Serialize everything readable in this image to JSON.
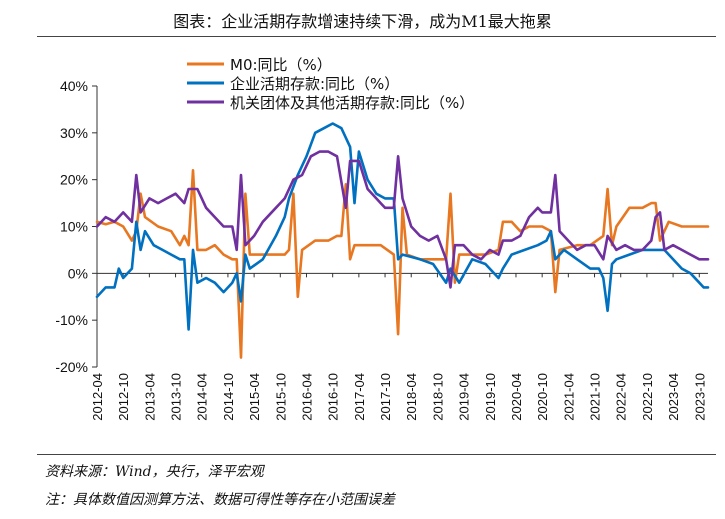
{
  "title": "图表：企业活期存款增速持续下滑，成为M1最大拖累",
  "source_note": "资料来源：Wind，央行，泽平宏观",
  "footnote": "注：具体数值因测算方法、数据可得性等存在小范围误差",
  "colors": {
    "m0": "#E87722",
    "corp": "#0070C0",
    "other": "#7030A0",
    "axis": "#333333"
  },
  "chart_data": {
    "type": "line",
    "ylim": [
      -20,
      40
    ],
    "yticks": [
      -20,
      -10,
      0,
      10,
      20,
      30,
      40
    ],
    "ytick_labels": [
      "-20%",
      "-10%",
      "0%",
      "10%",
      "20%",
      "30%",
      "40%"
    ],
    "grid": false,
    "legend_position": "top-left",
    "xtick_labels": [
      "2012-04",
      "2012-10",
      "2013-04",
      "2013-10",
      "2014-04",
      "2014-10",
      "2015-04",
      "2015-10",
      "2016-04",
      "2016-10",
      "2017-04",
      "2017-10",
      "2018-04",
      "2018-10",
      "2019-04",
      "2019-10",
      "2020-04",
      "2020-10",
      "2021-04",
      "2021-10",
      "2022-04",
      "2022-10",
      "2023-04",
      "2023-10"
    ],
    "series": [
      {
        "name": "M0:同比（%）",
        "color_key": "m0",
        "points": [
          [
            "2012-04",
            11
          ],
          [
            "2012-06",
            10.5
          ],
          [
            "2012-08",
            11
          ],
          [
            "2012-10",
            10
          ],
          [
            "2012-12",
            7
          ],
          [
            "2013-01",
            9
          ],
          [
            "2013-02",
            17
          ],
          [
            "2013-03",
            12
          ],
          [
            "2013-06",
            10
          ],
          [
            "2013-09",
            9
          ],
          [
            "2013-11",
            6
          ],
          [
            "2013-12",
            8
          ],
          [
            "2014-01",
            6
          ],
          [
            "2014-02",
            22
          ],
          [
            "2014-03",
            5
          ],
          [
            "2014-05",
            5
          ],
          [
            "2014-07",
            6
          ],
          [
            "2014-09",
            4
          ],
          [
            "2014-11",
            3
          ],
          [
            "2014-12",
            3
          ],
          [
            "2015-01",
            -18
          ],
          [
            "2015-02",
            17
          ],
          [
            "2015-03",
            4
          ],
          [
            "2015-06",
            4
          ],
          [
            "2015-09",
            4
          ],
          [
            "2015-11",
            4
          ],
          [
            "2015-12",
            5
          ],
          [
            "2016-01",
            17
          ],
          [
            "2016-02",
            -5
          ],
          [
            "2016-03",
            5
          ],
          [
            "2016-06",
            7
          ],
          [
            "2016-09",
            7
          ],
          [
            "2016-11",
            8
          ],
          [
            "2016-12",
            8
          ],
          [
            "2017-01",
            19
          ],
          [
            "2017-02",
            3
          ],
          [
            "2017-03",
            6
          ],
          [
            "2017-06",
            6
          ],
          [
            "2017-09",
            6
          ],
          [
            "2017-12",
            4
          ],
          [
            "2018-01",
            -13
          ],
          [
            "2018-02",
            14
          ],
          [
            "2018-03",
            4
          ],
          [
            "2018-06",
            3
          ],
          [
            "2018-09",
            3
          ],
          [
            "2018-12",
            3
          ],
          [
            "2019-01",
            17
          ],
          [
            "2019-02",
            -2
          ],
          [
            "2019-03",
            4
          ],
          [
            "2019-06",
            4
          ],
          [
            "2019-09",
            4
          ],
          [
            "2019-12",
            5
          ],
          [
            "2020-01",
            11
          ],
          [
            "2020-03",
            11
          ],
          [
            "2020-05",
            9
          ],
          [
            "2020-07",
            10
          ],
          [
            "2020-09",
            10
          ],
          [
            "2020-10",
            10
          ],
          [
            "2020-12",
            9
          ],
          [
            "2021-01",
            -4
          ],
          [
            "2021-02",
            5
          ],
          [
            "2021-06",
            6
          ],
          [
            "2021-09",
            6
          ],
          [
            "2021-12",
            8
          ],
          [
            "2022-01",
            18
          ],
          [
            "2022-02",
            6
          ],
          [
            "2022-03",
            10
          ],
          [
            "2022-06",
            14
          ],
          [
            "2022-09",
            14
          ],
          [
            "2022-11",
            15
          ],
          [
            "2022-12",
            15
          ],
          [
            "2023-01",
            7
          ],
          [
            "2023-03",
            11
          ],
          [
            "2023-06",
            10
          ],
          [
            "2023-09",
            10
          ],
          [
            "2023-11",
            10
          ],
          [
            "2023-12",
            10
          ]
        ]
      },
      {
        "name": "企业活期存款:同比（%）",
        "color_key": "corp",
        "points": [
          [
            "2012-04",
            -5
          ],
          [
            "2012-06",
            -3
          ],
          [
            "2012-08",
            -3
          ],
          [
            "2012-09",
            1
          ],
          [
            "2012-10",
            -1
          ],
          [
            "2012-12",
            1
          ],
          [
            "2013-01",
            11
          ],
          [
            "2013-02",
            5
          ],
          [
            "2013-03",
            9
          ],
          [
            "2013-05",
            6
          ],
          [
            "2013-07",
            5
          ],
          [
            "2013-09",
            4
          ],
          [
            "2013-11",
            3
          ],
          [
            "2013-12",
            3
          ],
          [
            "2014-01",
            -12
          ],
          [
            "2014-02",
            5
          ],
          [
            "2014-03",
            -2
          ],
          [
            "2014-05",
            -1
          ],
          [
            "2014-07",
            -2
          ],
          [
            "2014-09",
            -4
          ],
          [
            "2014-11",
            -2
          ],
          [
            "2014-12",
            0
          ],
          [
            "2015-01",
            -6
          ],
          [
            "2015-02",
            4
          ],
          [
            "2015-03",
            1
          ],
          [
            "2015-06",
            3
          ],
          [
            "2015-09",
            8
          ],
          [
            "2015-11",
            12
          ],
          [
            "2015-12",
            16
          ],
          [
            "2016-02",
            21
          ],
          [
            "2016-04",
            25
          ],
          [
            "2016-06",
            30
          ],
          [
            "2016-08",
            31
          ],
          [
            "2016-10",
            32
          ],
          [
            "2016-12",
            31
          ],
          [
            "2017-02",
            27
          ],
          [
            "2017-03",
            15
          ],
          [
            "2017-04",
            26
          ],
          [
            "2017-06",
            20
          ],
          [
            "2017-08",
            17
          ],
          [
            "2017-10",
            16
          ],
          [
            "2017-12",
            16
          ],
          [
            "2018-01",
            3
          ],
          [
            "2018-02",
            4
          ],
          [
            "2018-06",
            3
          ],
          [
            "2018-09",
            2
          ],
          [
            "2018-12",
            -2
          ],
          [
            "2019-01",
            1
          ],
          [
            "2019-03",
            -2
          ],
          [
            "2019-06",
            3
          ],
          [
            "2019-09",
            2
          ],
          [
            "2019-12",
            -1
          ],
          [
            "2020-01",
            1
          ],
          [
            "2020-03",
            4
          ],
          [
            "2020-06",
            5
          ],
          [
            "2020-09",
            6
          ],
          [
            "2020-11",
            7
          ],
          [
            "2020-12",
            9
          ],
          [
            "2021-01",
            3
          ],
          [
            "2021-03",
            5
          ],
          [
            "2021-06",
            3
          ],
          [
            "2021-09",
            1
          ],
          [
            "2021-11",
            1
          ],
          [
            "2021-12",
            -1
          ],
          [
            "2022-01",
            -8
          ],
          [
            "2022-02",
            2
          ],
          [
            "2022-03",
            3
          ],
          [
            "2022-06",
            4
          ],
          [
            "2022-09",
            5
          ],
          [
            "2022-12",
            5
          ],
          [
            "2023-02",
            5
          ],
          [
            "2023-04",
            3
          ],
          [
            "2023-06",
            1
          ],
          [
            "2023-08",
            0
          ],
          [
            "2023-10",
            -2
          ],
          [
            "2023-11",
            -3
          ],
          [
            "2023-12",
            -3
          ]
        ]
      },
      {
        "name": "机关团体及其他活期存款:同比（%）",
        "color_key": "other",
        "points": [
          [
            "2012-04",
            10
          ],
          [
            "2012-06",
            12
          ],
          [
            "2012-08",
            11
          ],
          [
            "2012-10",
            13
          ],
          [
            "2012-12",
            11
          ],
          [
            "2013-01",
            21
          ],
          [
            "2013-02",
            13
          ],
          [
            "2013-04",
            16
          ],
          [
            "2013-06",
            15
          ],
          [
            "2013-08",
            16
          ],
          [
            "2013-10",
            17
          ],
          [
            "2013-12",
            15
          ],
          [
            "2014-01",
            18
          ],
          [
            "2014-03",
            18
          ],
          [
            "2014-05",
            14
          ],
          [
            "2014-07",
            12
          ],
          [
            "2014-09",
            10
          ],
          [
            "2014-11",
            10
          ],
          [
            "2014-12",
            5
          ],
          [
            "2015-01",
            21
          ],
          [
            "2015-02",
            6
          ],
          [
            "2015-04",
            8
          ],
          [
            "2015-06",
            11
          ],
          [
            "2015-09",
            14
          ],
          [
            "2015-10",
            15
          ],
          [
            "2015-11",
            16
          ],
          [
            "2016-01",
            20
          ],
          [
            "2016-03",
            21
          ],
          [
            "2016-05",
            25
          ],
          [
            "2016-07",
            26
          ],
          [
            "2016-09",
            26
          ],
          [
            "2016-11",
            25
          ],
          [
            "2017-01",
            14
          ],
          [
            "2017-02",
            24
          ],
          [
            "2017-04",
            24
          ],
          [
            "2017-06",
            18
          ],
          [
            "2017-08",
            16
          ],
          [
            "2017-10",
            14
          ],
          [
            "2017-12",
            14
          ],
          [
            "2018-01",
            25
          ],
          [
            "2018-02",
            16
          ],
          [
            "2018-04",
            10
          ],
          [
            "2018-06",
            8
          ],
          [
            "2018-08",
            7
          ],
          [
            "2018-10",
            8
          ],
          [
            "2018-12",
            3
          ],
          [
            "2019-01",
            -3
          ],
          [
            "2019-02",
            6
          ],
          [
            "2019-04",
            6
          ],
          [
            "2019-06",
            4
          ],
          [
            "2019-08",
            3
          ],
          [
            "2019-10",
            5
          ],
          [
            "2019-12",
            4
          ],
          [
            "2020-01",
            7
          ],
          [
            "2020-03",
            7
          ],
          [
            "2020-05",
            8
          ],
          [
            "2020-07",
            12
          ],
          [
            "2020-09",
            14
          ],
          [
            "2020-10",
            13
          ],
          [
            "2020-12",
            13
          ],
          [
            "2021-01",
            21
          ],
          [
            "2021-02",
            9
          ],
          [
            "2021-04",
            7
          ],
          [
            "2021-06",
            5
          ],
          [
            "2021-08",
            6
          ],
          [
            "2021-10",
            6
          ],
          [
            "2021-12",
            3
          ],
          [
            "2022-01",
            8
          ],
          [
            "2022-03",
            5
          ],
          [
            "2022-05",
            6
          ],
          [
            "2022-07",
            5
          ],
          [
            "2022-09",
            5
          ],
          [
            "2022-11",
            7
          ],
          [
            "2022-12",
            12
          ],
          [
            "2023-01",
            13
          ],
          [
            "2023-02",
            5
          ],
          [
            "2023-04",
            6
          ],
          [
            "2023-06",
            5
          ],
          [
            "2023-08",
            4
          ],
          [
            "2023-10",
            3
          ],
          [
            "2023-12",
            3
          ]
        ]
      }
    ]
  }
}
